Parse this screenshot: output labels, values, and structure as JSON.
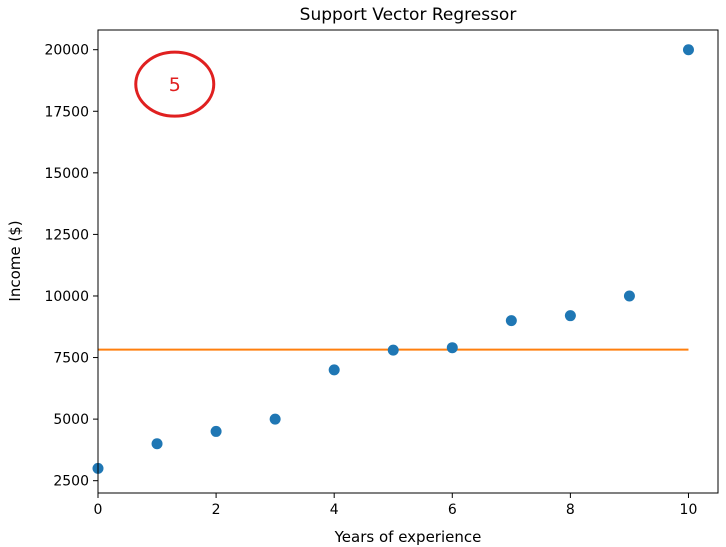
{
  "chart_data": {
    "type": "scatter",
    "title": "Support Vector Regressor",
    "xlabel": "Years of experience",
    "ylabel": "Income ($)",
    "xlim": [
      0,
      10.5
    ],
    "ylim": [
      2000,
      20800
    ],
    "xticks": [
      0,
      2,
      4,
      6,
      8,
      10
    ],
    "yticks": [
      2500,
      5000,
      7500,
      10000,
      12500,
      15000,
      17500,
      20000
    ],
    "grid": false,
    "series": [
      {
        "type": "scatter",
        "color": "#1f77b4",
        "x": [
          0,
          1,
          2,
          3,
          4,
          5,
          6,
          7,
          8,
          9,
          10
        ],
        "y": [
          3000,
          4000,
          4500,
          5000,
          7000,
          7800,
          7900,
          9000,
          9200,
          10000,
          20000
        ]
      },
      {
        "type": "line",
        "color": "#ff7f0e",
        "x": [
          0,
          10
        ],
        "y": [
          7820,
          7820
        ]
      }
    ],
    "annotation": {
      "text": "5",
      "color": "#e02020",
      "shape": "ellipse",
      "x": 1.3,
      "y": 18600
    }
  }
}
